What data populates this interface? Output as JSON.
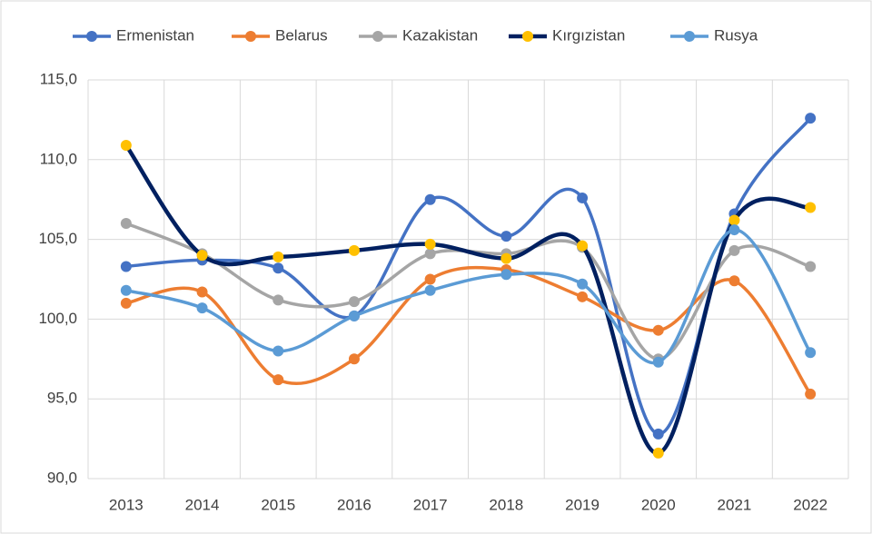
{
  "chart_data": {
    "type": "line",
    "smooth": true,
    "grid": true,
    "legend": "top",
    "categories": [
      "2013",
      "2014",
      "2015",
      "2016",
      "2017",
      "2018",
      "2019",
      "2020",
      "2021",
      "2022"
    ],
    "ylim": [
      90,
      115
    ],
    "yticks": [
      {
        "value": 90,
        "label": "90,0"
      },
      {
        "value": 95,
        "label": "95,0"
      },
      {
        "value": 100,
        "label": "100,0"
      },
      {
        "value": 105,
        "label": "105,0"
      },
      {
        "value": 110,
        "label": "110,0"
      },
      {
        "value": 115,
        "label": "115,0"
      }
    ],
    "series": [
      {
        "name": "Ermenistan",
        "color": "#4472c4",
        "values": [
          103.3,
          103.7,
          103.2,
          100.2,
          107.5,
          105.2,
          107.6,
          92.8,
          106.6,
          112.6
        ]
      },
      {
        "name": "Belarus",
        "color": "#ed7d31",
        "values": [
          101.0,
          101.7,
          96.2,
          97.5,
          102.5,
          103.1,
          101.4,
          99.3,
          102.4,
          95.3
        ]
      },
      {
        "name": "Kazakistan",
        "color": "#a5a5a5",
        "values": [
          106.0,
          104.1,
          101.2,
          101.1,
          104.1,
          104.1,
          104.5,
          97.5,
          104.3,
          103.3
        ]
      },
      {
        "name": "Kırgızistan",
        "color": "#002060",
        "marker_color": "#ffc000",
        "values": [
          110.9,
          104.0,
          103.9,
          104.3,
          104.7,
          103.8,
          104.6,
          91.6,
          106.2,
          107.0
        ]
      },
      {
        "name": "Rusya",
        "color": "#5b9bd5",
        "values": [
          101.8,
          100.7,
          98.0,
          100.2,
          101.8,
          102.8,
          102.2,
          97.3,
          105.6,
          97.9
        ]
      }
    ]
  }
}
